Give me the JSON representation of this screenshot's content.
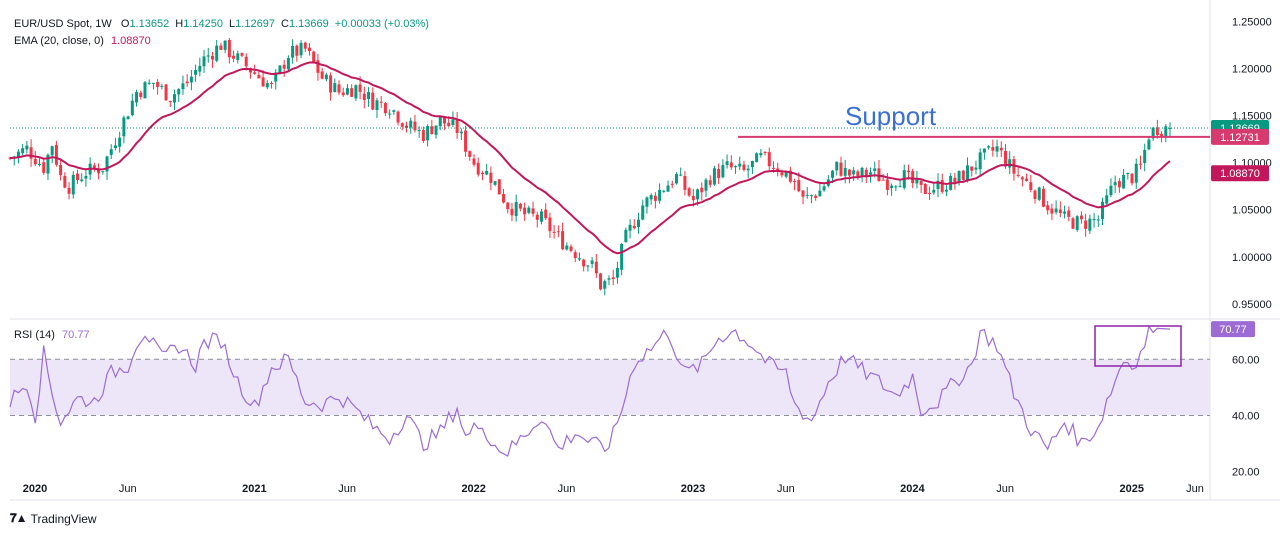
{
  "header": {
    "symbol": "EUR/USD Spot, 1W",
    "open_label": "O",
    "open": "1.13652",
    "high_label": "H",
    "high": "1.14250",
    "low_label": "L",
    "low": "1.12697",
    "close_label": "C",
    "close": "1.13669",
    "change": "+0.00033 (+0.03%)",
    "ema_label": "EMA (20, close, 0)",
    "ema_value": "1.08870",
    "rsi_label": "RSI (14)",
    "rsi_value": "70.77"
  },
  "brand": "TradingView",
  "colors": {
    "up": "#089981",
    "down": "#f23645",
    "ema": "#c2185b",
    "support": "#d63a6e",
    "rsi": "#9c6cd4",
    "rsi_band": "#ede6f8",
    "annotation": "#3b6fd4",
    "box": "#8e24aa"
  },
  "chart_data": [
    {
      "type": "candlestick",
      "title": "EUR/USD Spot, 1W",
      "x_ticks": [
        "2020",
        "Jun",
        "2021",
        "Jun",
        "2022",
        "Jun",
        "2023",
        "Jun",
        "2024",
        "Jun",
        "2025",
        "Jun"
      ],
      "x_tick_bold": [
        true,
        false,
        true,
        false,
        true,
        false,
        true,
        false,
        true,
        false,
        true,
        false
      ],
      "y_ticks": [
        "1.25000",
        "1.20000",
        "1.15000",
        "1.10000",
        "1.05000",
        "1.00000",
        "0.95000"
      ],
      "ylim": [
        0.935,
        1.262
      ],
      "price_path": [
        [
          0,
          1.105
        ],
        [
          4,
          1.115
        ],
        [
          8,
          1.095
        ],
        [
          10,
          1.12
        ],
        [
          12,
          1.085
        ],
        [
          14,
          1.075
        ],
        [
          18,
          1.09
        ],
        [
          22,
          1.095
        ],
        [
          26,
          1.135
        ],
        [
          30,
          1.175
        ],
        [
          34,
          1.185
        ],
        [
          38,
          1.17
        ],
        [
          42,
          1.185
        ],
        [
          46,
          1.21
        ],
        [
          50,
          1.225
        ],
        [
          54,
          1.21
        ],
        [
          58,
          1.195
        ],
        [
          62,
          1.18
        ],
        [
          66,
          1.215
        ],
        [
          70,
          1.22
        ],
        [
          74,
          1.19
        ],
        [
          78,
          1.175
        ],
        [
          82,
          1.18
        ],
        [
          86,
          1.165
        ],
        [
          90,
          1.16
        ],
        [
          94,
          1.14
        ],
        [
          98,
          1.13
        ],
        [
          102,
          1.145
        ],
        [
          106,
          1.135
        ],
        [
          110,
          1.1
        ],
        [
          114,
          1.085
        ],
        [
          118,
          1.055
        ],
        [
          122,
          1.045
        ],
        [
          126,
          1.04
        ],
        [
          130,
          1.02
        ],
        [
          134,
          1.005
        ],
        [
          138,
          0.99
        ],
        [
          140,
          0.97
        ],
        [
          143,
          0.975
        ],
        [
          146,
          1.02
        ],
        [
          150,
          1.055
        ],
        [
          154,
          1.07
        ],
        [
          158,
          1.085
        ],
        [
          162,
          1.06
        ],
        [
          166,
          1.085
        ],
        [
          170,
          1.095
        ],
        [
          174,
          1.09
        ],
        [
          178,
          1.105
        ],
        [
          182,
          1.095
        ],
        [
          186,
          1.08
        ],
        [
          188,
          1.06
        ],
        [
          192,
          1.07
        ],
        [
          196,
          1.095
        ],
        [
          200,
          1.085
        ],
        [
          204,
          1.09
        ],
        [
          208,
          1.08
        ],
        [
          212,
          1.085
        ],
        [
          216,
          1.07
        ],
        [
          220,
          1.075
        ],
        [
          224,
          1.08
        ],
        [
          228,
          1.095
        ],
        [
          232,
          1.11
        ],
        [
          234,
          1.115
        ],
        [
          238,
          1.09
        ],
        [
          242,
          1.075
        ],
        [
          246,
          1.055
        ],
        [
          250,
          1.04
        ],
        [
          254,
          1.035
        ],
        [
          258,
          1.04
        ],
        [
          262,
          1.08
        ],
        [
          266,
          1.085
        ],
        [
          268,
          1.095
        ],
        [
          270,
          1.13
        ],
        [
          272,
          1.137
        ],
        [
          275,
          1.1367
        ]
      ],
      "current_bar": {
        "open": 1.13652,
        "high": 1.1425,
        "low": 1.12697,
        "close": 1.13669
      },
      "ema": {
        "name": "EMA (20, close, 0)",
        "value": 1.0887
      },
      "support": {
        "value": 1.12731,
        "label": "Support",
        "price_label": "1.12731"
      },
      "price_labels": [
        {
          "value": 1.13669,
          "text": "1.13669",
          "color": "#089981"
        },
        {
          "value": 1.12731,
          "text": "1.12731",
          "color": "#d63a6e"
        },
        {
          "value": 1.0887,
          "text": "1.08870",
          "color": "#c2185b"
        }
      ]
    },
    {
      "type": "line",
      "title": "RSI (14)",
      "y_ticks": [
        "60.00",
        "40.00",
        "20.00"
      ],
      "ylim": [
        17,
        74
      ],
      "band": [
        40,
        60
      ],
      "rsi_path": [
        [
          0,
          45
        ],
        [
          4,
          52
        ],
        [
          6,
          40
        ],
        [
          8,
          62
        ],
        [
          10,
          48
        ],
        [
          12,
          38
        ],
        [
          16,
          46
        ],
        [
          20,
          45
        ],
        [
          24,
          55
        ],
        [
          28,
          58
        ],
        [
          30,
          66
        ],
        [
          32,
          70
        ],
        [
          36,
          60
        ],
        [
          40,
          65
        ],
        [
          44,
          58
        ],
        [
          46,
          66
        ],
        [
          50,
          67
        ],
        [
          54,
          52
        ],
        [
          58,
          43
        ],
        [
          62,
          57
        ],
        [
          66,
          60
        ],
        [
          70,
          45
        ],
        [
          74,
          44
        ],
        [
          78,
          47
        ],
        [
          82,
          42
        ],
        [
          86,
          36
        ],
        [
          90,
          32
        ],
        [
          94,
          40
        ],
        [
          98,
          30
        ],
        [
          102,
          34
        ],
        [
          106,
          43
        ],
        [
          108,
          32
        ],
        [
          112,
          38
        ],
        [
          114,
          30
        ],
        [
          118,
          27
        ],
        [
          122,
          33
        ],
        [
          126,
          40
        ],
        [
          130,
          28
        ],
        [
          134,
          34
        ],
        [
          138,
          30
        ],
        [
          141,
          28
        ],
        [
          143,
          33
        ],
        [
          145,
          42
        ],
        [
          148,
          59
        ],
        [
          152,
          64
        ],
        [
          156,
          70
        ],
        [
          160,
          55
        ],
        [
          164,
          58
        ],
        [
          168,
          68
        ],
        [
          172,
          70
        ],
        [
          176,
          65
        ],
        [
          180,
          58
        ],
        [
          184,
          55
        ],
        [
          186,
          44
        ],
        [
          190,
          38
        ],
        [
          192,
          45
        ],
        [
          194,
          52
        ],
        [
          198,
          61
        ],
        [
          202,
          56
        ],
        [
          206,
          52
        ],
        [
          210,
          47
        ],
        [
          214,
          54
        ],
        [
          216,
          42
        ],
        [
          220,
          45
        ],
        [
          224,
          52
        ],
        [
          228,
          58
        ],
        [
          230,
          70
        ],
        [
          234,
          65
        ],
        [
          238,
          48
        ],
        [
          242,
          35
        ],
        [
          246,
          28
        ],
        [
          250,
          38
        ],
        [
          254,
          30
        ],
        [
          258,
          36
        ],
        [
          260,
          45
        ],
        [
          264,
          60
        ],
        [
          266,
          58
        ],
        [
          268,
          62
        ],
        [
          270,
          70
        ],
        [
          272,
          71
        ],
        [
          275,
          70.77
        ]
      ],
      "current": {
        "value": 70.77,
        "text": "70.77"
      }
    }
  ]
}
